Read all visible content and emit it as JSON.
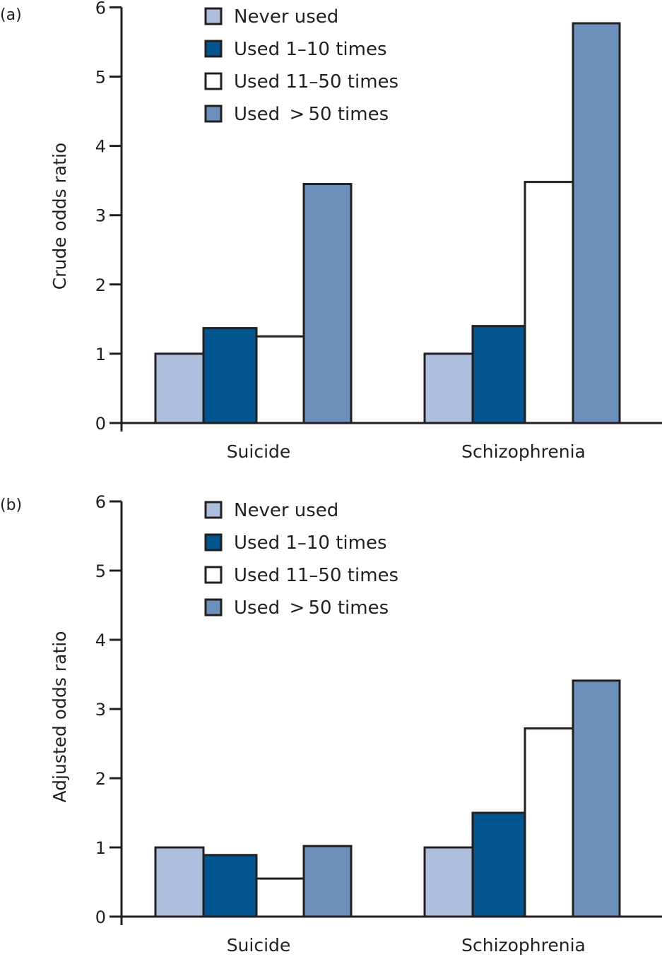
{
  "chart_data": [
    {
      "type": "bar",
      "panel_label": "(a)",
      "title": "",
      "xlabel": "",
      "ylabel": "Crude odds ratio",
      "ylim": [
        0,
        6
      ],
      "yticks": [
        "0",
        "1",
        "2",
        "3",
        "4",
        "5",
        "6"
      ],
      "grid": false,
      "legend_placement": "top-center",
      "categories": [
        "Suicide",
        "Schizophrenia"
      ],
      "series": [
        {
          "name": "Never used",
          "color": "#adbfdc",
          "values": [
            1.0,
            1.0
          ]
        },
        {
          "name": "Used 1–10 times",
          "color": "#02558e",
          "values": [
            1.37,
            1.4
          ]
        },
        {
          "name": "Used 11–50 times",
          "color": "#ffffff",
          "values": [
            1.25,
            3.48
          ]
        },
        {
          "name": "Used >50 times",
          "color": "#6d90bd",
          "values": [
            3.45,
            5.77
          ]
        }
      ]
    },
    {
      "type": "bar",
      "panel_label": "(b)",
      "title": "",
      "xlabel": "",
      "ylabel": "Adjusted odds ratio",
      "ylim": [
        0,
        6
      ],
      "yticks": [
        "0",
        "1",
        "2",
        "3",
        "4",
        "5",
        "6"
      ],
      "grid": false,
      "legend_placement": "top-center",
      "categories": [
        "Suicide",
        "Schizophrenia"
      ],
      "series": [
        {
          "name": "Never used",
          "color": "#adbfdc",
          "values": [
            1.0,
            1.0
          ]
        },
        {
          "name": "Used 1–10 times",
          "color": "#02558e",
          "values": [
            0.89,
            1.5
          ]
        },
        {
          "name": "Used 11–50 times",
          "color": "#ffffff",
          "values": [
            0.55,
            2.72
          ]
        },
        {
          "name": "Used >50 times",
          "color": "#6d90bd",
          "values": [
            1.02,
            3.41
          ]
        }
      ]
    }
  ],
  "legend_labels_display": [
    "Never used",
    "Used 1–10 times",
    "Used 11–50 times",
    "Used  > 50 times"
  ]
}
